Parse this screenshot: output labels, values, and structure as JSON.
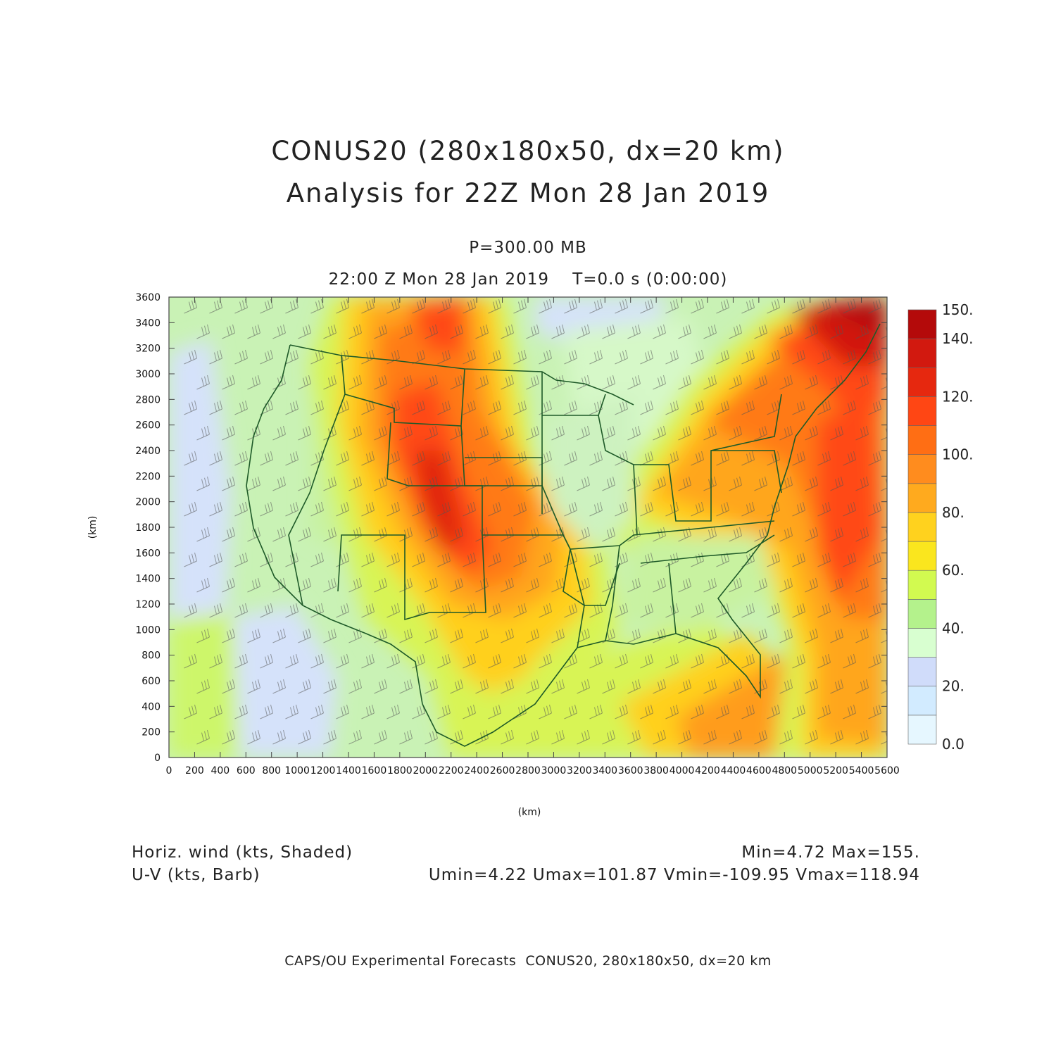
{
  "header": {
    "title_line1": "CONUS20 (280x180x50, dx=20 km)",
    "title_line2": "Analysis for 22Z Mon 28 Jan 2019",
    "level": "P=300.00 MB",
    "time": "22:00 Z Mon 28 Jan 2019    T=0.0 s (0:00:00)"
  },
  "axes": {
    "xlabel": "(km)",
    "ylabel": "(km)",
    "xticks": [
      "0",
      "200",
      "400",
      "600",
      "800",
      "1000",
      "1200",
      "1400",
      "1600",
      "1800",
      "2000",
      "2200",
      "2400",
      "2600",
      "2800",
      "3000",
      "3200",
      "3400",
      "3600",
      "3800",
      "4000",
      "4200",
      "4400",
      "4600",
      "4800",
      "5000",
      "5200",
      "5400",
      "5600"
    ],
    "yticks": [
      "0",
      "200",
      "400",
      "600",
      "800",
      "1000",
      "1200",
      "1400",
      "1600",
      "1800",
      "2000",
      "2200",
      "2400",
      "2600",
      "2800",
      "3000",
      "3200",
      "3400",
      "3600"
    ]
  },
  "colorbar": {
    "labels": [
      "0.0",
      "20.",
      "40.",
      "60.",
      "80.",
      "100.",
      "120.",
      "140.",
      "150."
    ],
    "colors": [
      "#e6f7ff",
      "#d2ebff",
      "#d0dcfa",
      "#d8ffd0",
      "#b4f28c",
      "#d2fa50",
      "#fae61e",
      "#ffd21e",
      "#ffaa1e",
      "#ff8c1e",
      "#ff6e14",
      "#ff4614",
      "#e6280f",
      "#d2190f",
      "#b40a0a"
    ]
  },
  "chart_data": {
    "type": "heatmap",
    "field": "Horizontal wind speed at 300 mb",
    "units": "kts",
    "xlim": [
      0,
      5600
    ],
    "ylim": [
      0,
      3600
    ],
    "range": [
      0,
      150
    ],
    "min": 4.72,
    "max": 155,
    "components": {
      "umin": 4.22,
      "umax": 101.87,
      "vmin": -109.95,
      "vmax": 118.94
    }
  },
  "footer": {
    "left_line1": "Horiz. wind (kts, Shaded)",
    "left_line2": "U-V (kts, Barb)",
    "right_line1": "Min=4.72 Max=155.",
    "right_line2": "Umin=4.22 Umax=101.87 Vmin=-109.95 Vmax=118.94",
    "credit": "CAPS/OU Experimental Forecasts  CONUS20, 280x180x50, dx=20 km"
  }
}
